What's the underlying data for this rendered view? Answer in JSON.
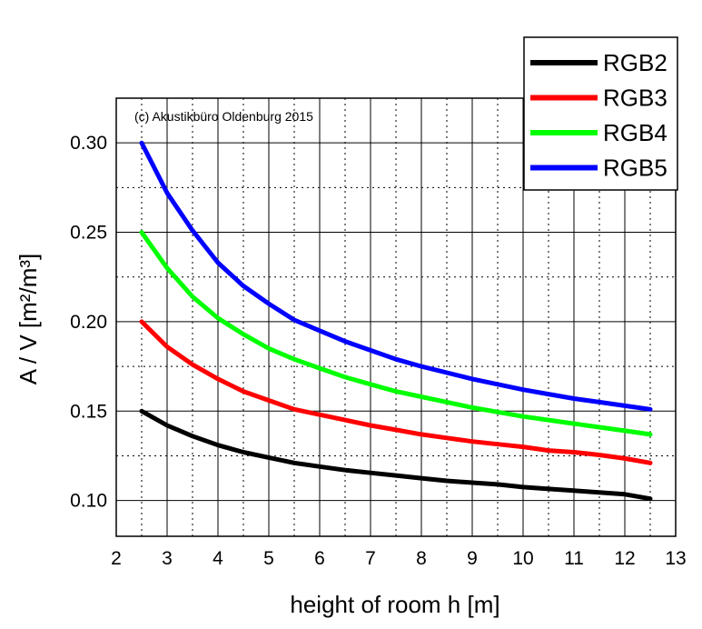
{
  "chart_data": {
    "type": "line",
    "title": "",
    "xlabel": "height of room h [m]",
    "ylabel": "A / V [m²/m³]",
    "annotation": "(c) Akustikbüro Oldenburg 2015",
    "xlim": [
      2,
      13
    ],
    "ylim": [
      0.08,
      0.325
    ],
    "xticks": [
      2,
      3,
      4,
      5,
      6,
      7,
      8,
      9,
      10,
      11,
      12,
      13
    ],
    "yticks": [
      0.1,
      0.15,
      0.2,
      0.25,
      0.3
    ],
    "ytick_labels": [
      "0.10",
      "0.15",
      "0.20",
      "0.25",
      "0.30"
    ],
    "grid": "major solid, minor dotted",
    "legend_position": "top-right",
    "x": [
      2.5,
      3,
      3.5,
      4,
      4.5,
      5,
      5.5,
      6,
      6.5,
      7,
      7.5,
      8,
      8.5,
      9,
      9.5,
      10,
      10.5,
      11,
      11.5,
      12,
      12.5
    ],
    "series": [
      {
        "name": "RGB2",
        "color": "#000000",
        "values": [
          0.15,
          0.142,
          0.136,
          0.131,
          0.127,
          0.124,
          0.121,
          0.119,
          0.117,
          0.1155,
          0.114,
          0.1125,
          0.111,
          0.11,
          0.109,
          0.1075,
          0.1065,
          0.1055,
          0.1045,
          0.1035,
          0.101
        ]
      },
      {
        "name": "RGB3",
        "color": "#ff0000",
        "values": [
          0.2,
          0.186,
          0.176,
          0.168,
          0.161,
          0.156,
          0.151,
          0.148,
          0.145,
          0.142,
          0.1395,
          0.137,
          0.135,
          0.133,
          0.1315,
          0.13,
          0.128,
          0.127,
          0.1255,
          0.1235,
          0.121
        ]
      },
      {
        "name": "RGB4",
        "color": "#00ff00",
        "values": [
          0.25,
          0.23,
          0.214,
          0.202,
          0.193,
          0.185,
          0.179,
          0.174,
          0.169,
          0.165,
          0.161,
          0.158,
          0.155,
          0.152,
          0.1495,
          0.147,
          0.145,
          0.143,
          0.141,
          0.139,
          0.137
        ]
      },
      {
        "name": "RGB5",
        "color": "#0000ff",
        "values": [
          0.3,
          0.272,
          0.251,
          0.233,
          0.22,
          0.21,
          0.201,
          0.195,
          0.189,
          0.184,
          0.179,
          0.175,
          0.1715,
          0.168,
          0.165,
          0.162,
          0.1595,
          0.157,
          0.155,
          0.153,
          0.151
        ]
      }
    ]
  }
}
